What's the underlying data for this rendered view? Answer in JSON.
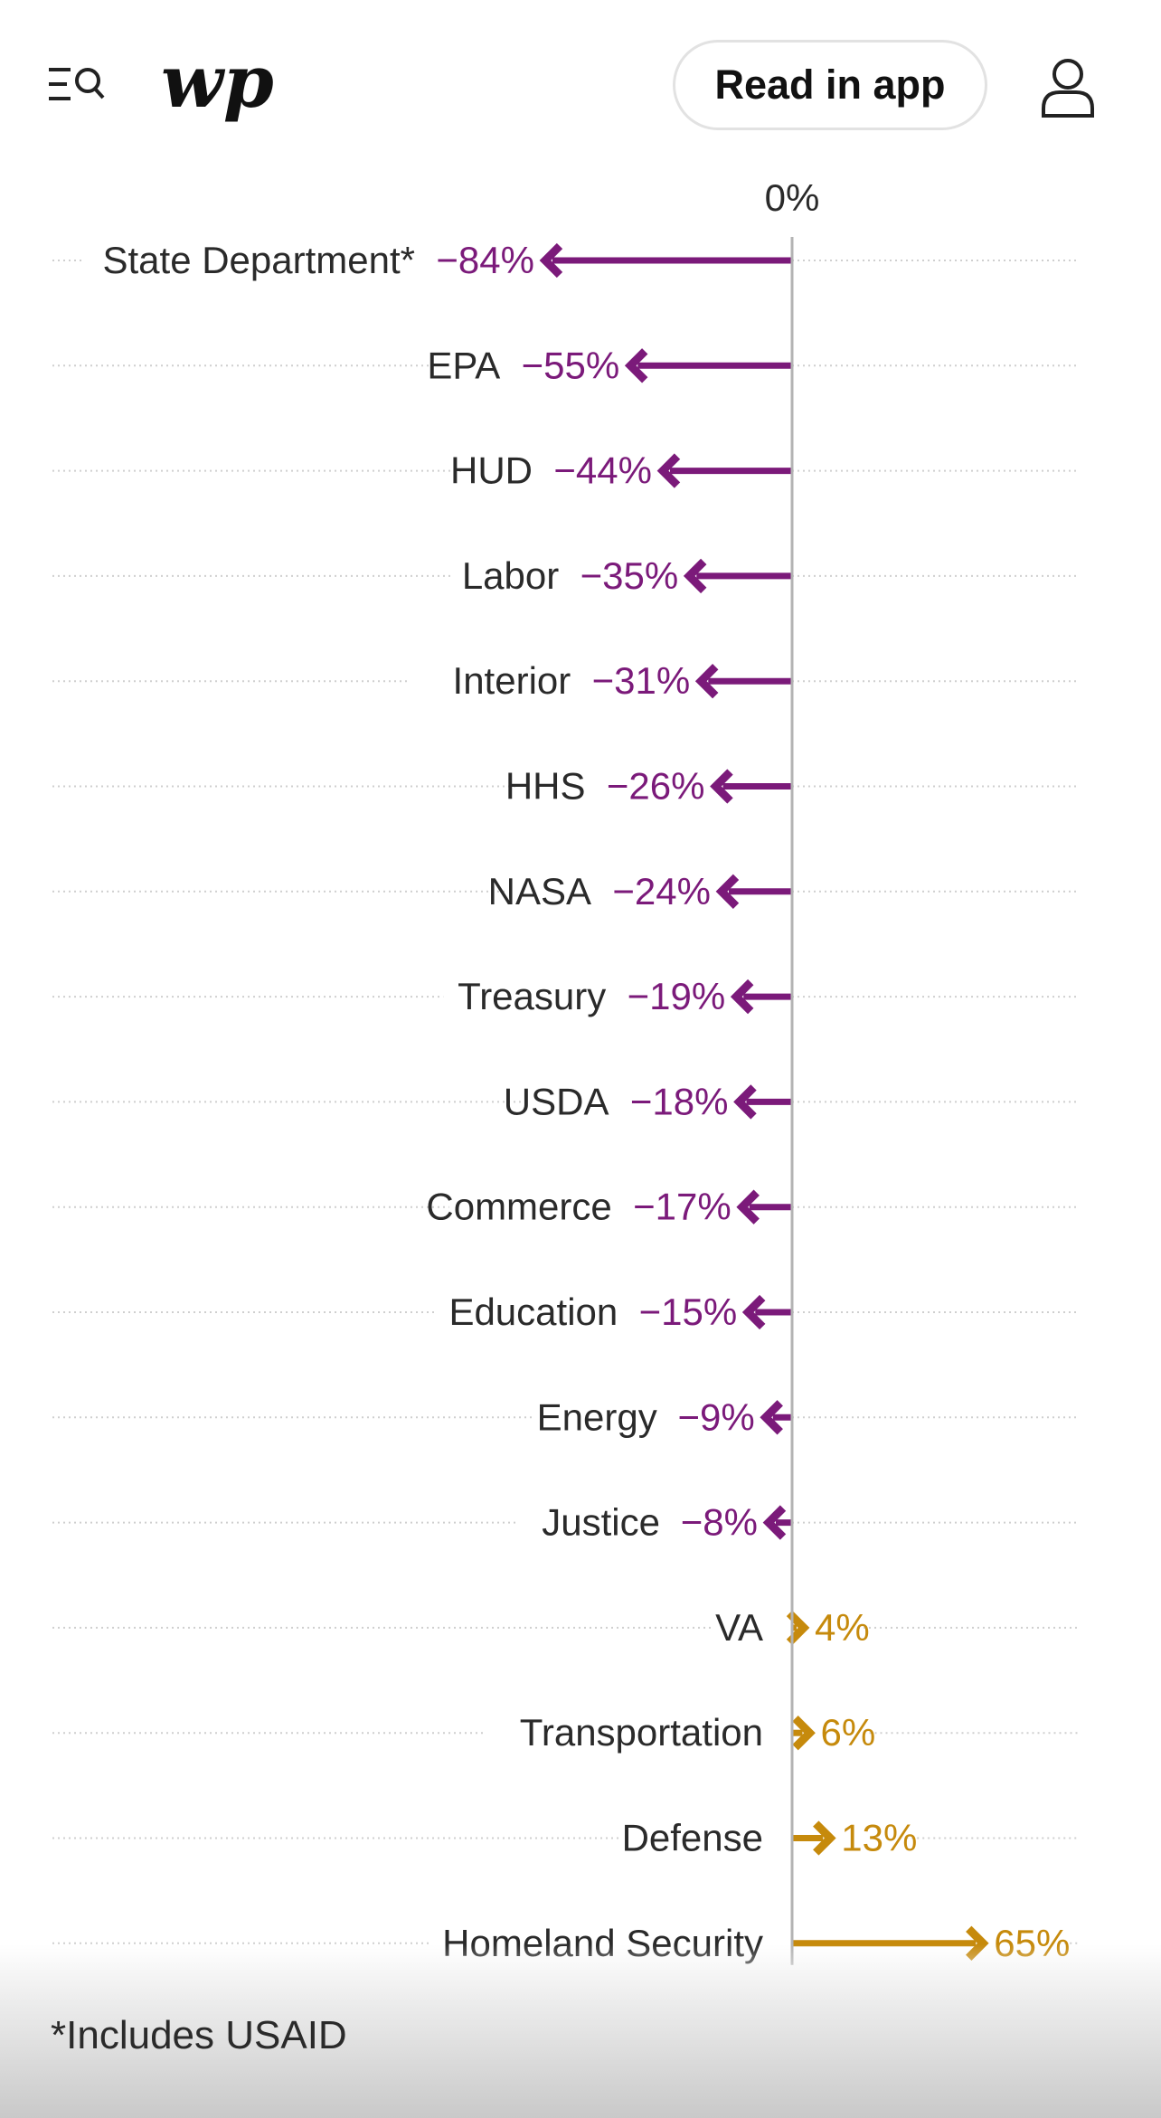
{
  "header": {
    "read_in_app_label": "Read in app",
    "icons": [
      "menu-search-icon",
      "washington-post-logo",
      "user-icon"
    ]
  },
  "colors": {
    "negative": "#7b1a7a",
    "positive": "#c68a0c",
    "axis": "#b3b3b3",
    "gridline": "#cfcfcf"
  },
  "chart_data": {
    "type": "bar",
    "zero_label": "0%",
    "unit": "%",
    "categories": [
      "State Department*",
      "EPA",
      "HUD",
      "Labor",
      "Interior",
      "HHS",
      "NASA",
      "Treasury",
      "USDA",
      "Commerce",
      "Education",
      "Energy",
      "Justice",
      "VA",
      "Transportation",
      "Defense",
      "Homeland Security"
    ],
    "values": [
      -84,
      -55,
      -44,
      -35,
      -31,
      -26,
      -24,
      -19,
      -18,
      -17,
      -15,
      -9,
      -8,
      4,
      6,
      13,
      65
    ],
    "labels": [
      "−84%",
      "−55%",
      "−44%",
      "−35%",
      "−31%",
      "−26%",
      "−24%",
      "−19%",
      "−18%",
      "−17%",
      "−15%",
      "−9%",
      "−8%",
      "4%",
      "6%",
      "13%",
      "65%"
    ],
    "xlim": [
      -84,
      65
    ],
    "grid": true
  },
  "footnote": "*Includes USAID"
}
